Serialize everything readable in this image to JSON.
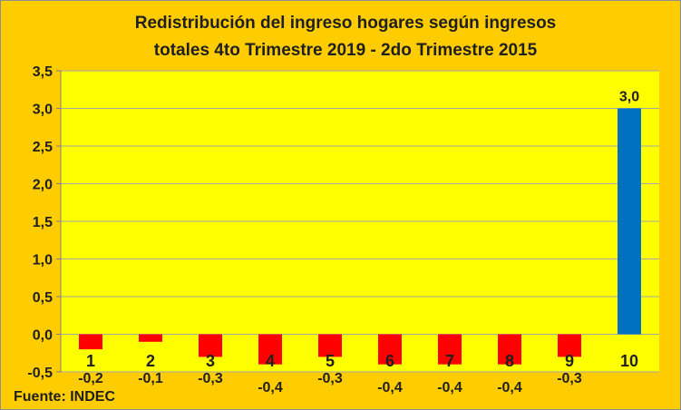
{
  "chart_data": {
    "type": "bar",
    "title_line1": "Redistribución del ingreso hogares según ingresos",
    "title_line2": "totales 4to Trimestre 2019 - 2do Trimestre 2015",
    "source": "Fuente: INDEC",
    "categories": [
      "1",
      "2",
      "3",
      "4",
      "5",
      "6",
      "7",
      "8",
      "9",
      "10"
    ],
    "values": [
      -0.2,
      -0.1,
      -0.3,
      -0.4,
      -0.3,
      -0.4,
      -0.4,
      -0.4,
      -0.3,
      3.0
    ],
    "data_labels": [
      "-0,2",
      "-0,1",
      "-0,3",
      "-0,4",
      "-0,3",
      "-0,4",
      "-0,4",
      "-0,4",
      "-0,3",
      "3,0"
    ],
    "y_ticks": [
      -0.5,
      0.0,
      0.5,
      1.0,
      1.5,
      2.0,
      2.5,
      3.0,
      3.5
    ],
    "y_tick_labels": [
      "-0,5",
      "0,0",
      "0,5",
      "1,0",
      "1,5",
      "2,0",
      "2,5",
      "3,0",
      "3,5"
    ],
    "ylim": [
      -0.5,
      3.5
    ],
    "grid": true,
    "colors": {
      "background": "#ffcc00",
      "plot_area": "#ffff00",
      "negative_bar": "#ff0000",
      "positive_bar": "#0070c0",
      "grid": "#a6a6a6"
    }
  }
}
